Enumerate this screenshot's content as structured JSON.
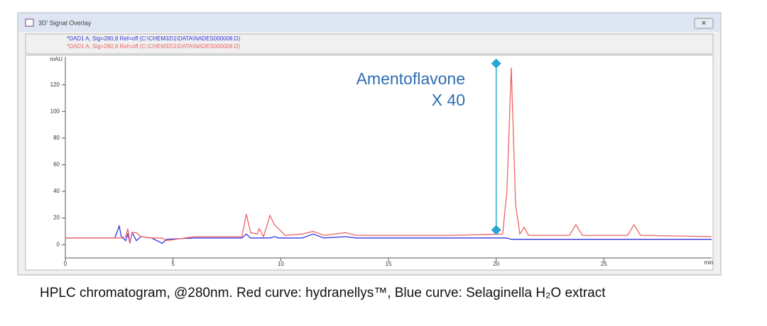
{
  "window_title": "3D' Signal Overlay",
  "caption": "HPLC chromatogram, @280nm. Red curve: hydranellys™, Blue curve: Selaginella H₂O extract",
  "chart_data": {
    "type": "line",
    "x_label": "min",
    "y_label": "mAU",
    "xlim": [
      0,
      30
    ],
    "ylim": [
      -10,
      139
    ],
    "xticks": [
      0,
      5,
      10,
      15,
      20,
      25
    ],
    "yticks": [
      0,
      20,
      40,
      60,
      80,
      100,
      120
    ],
    "x": [
      0,
      2.3,
      2.5,
      2.6,
      2.8,
      2.9,
      3.0,
      3.1,
      3.3,
      3.5,
      4.0,
      4.5,
      4.7,
      6.0,
      7.0,
      8.2,
      8.4,
      8.6,
      8.9,
      9.0,
      9.2,
      9.5,
      9.7,
      9.9,
      10.2,
      11.0,
      11.5,
      12.0,
      13.0,
      13.5,
      15,
      18,
      20.3,
      20.5,
      20.7,
      20.9,
      21.1,
      21.3,
      21.5,
      23.4,
      23.7,
      24.0,
      26.1,
      26.4,
      26.7,
      30
    ],
    "series": [
      {
        "name": "*DAD1 A, Sig=280,8 Ref=off (C:\\CHEM32\\1\\DATA\\NADES000008.D)",
        "color": "#3434e0",
        "values": [
          5,
          5,
          14,
          6,
          3,
          8,
          1,
          9,
          3,
          6,
          5,
          1,
          4,
          5,
          5,
          5,
          8,
          5,
          5,
          5,
          5,
          5,
          6,
          5,
          5,
          5,
          8,
          5,
          6,
          5,
          5,
          5,
          5,
          5,
          4,
          4,
          4,
          4,
          4,
          4,
          4,
          4,
          4,
          4,
          4,
          4
        ]
      },
      {
        "name": "*DAD1 A, Sig=280,8 Ref=off (C:\\CHEM32\\1\\DATA\\NADES000009.D)",
        "color": "#f06262",
        "values": [
          5,
          5,
          5,
          5,
          6,
          12,
          1,
          9,
          9,
          6,
          5,
          5,
          3,
          6,
          6,
          6,
          23,
          9,
          8,
          12,
          6,
          22,
          15,
          12,
          7,
          8,
          10,
          7,
          9,
          7,
          7,
          7,
          8,
          40,
          133,
          30,
          8,
          13,
          7,
          7,
          15,
          7,
          7,
          15,
          7,
          6
        ]
      }
    ],
    "annotation": {
      "lines": [
        "Amentoflavone",
        "X 40"
      ],
      "color": "#2f6db3"
    },
    "marker": {
      "x": 20,
      "y_start": 11,
      "y_end": 136,
      "color": "#27a6d4"
    }
  }
}
